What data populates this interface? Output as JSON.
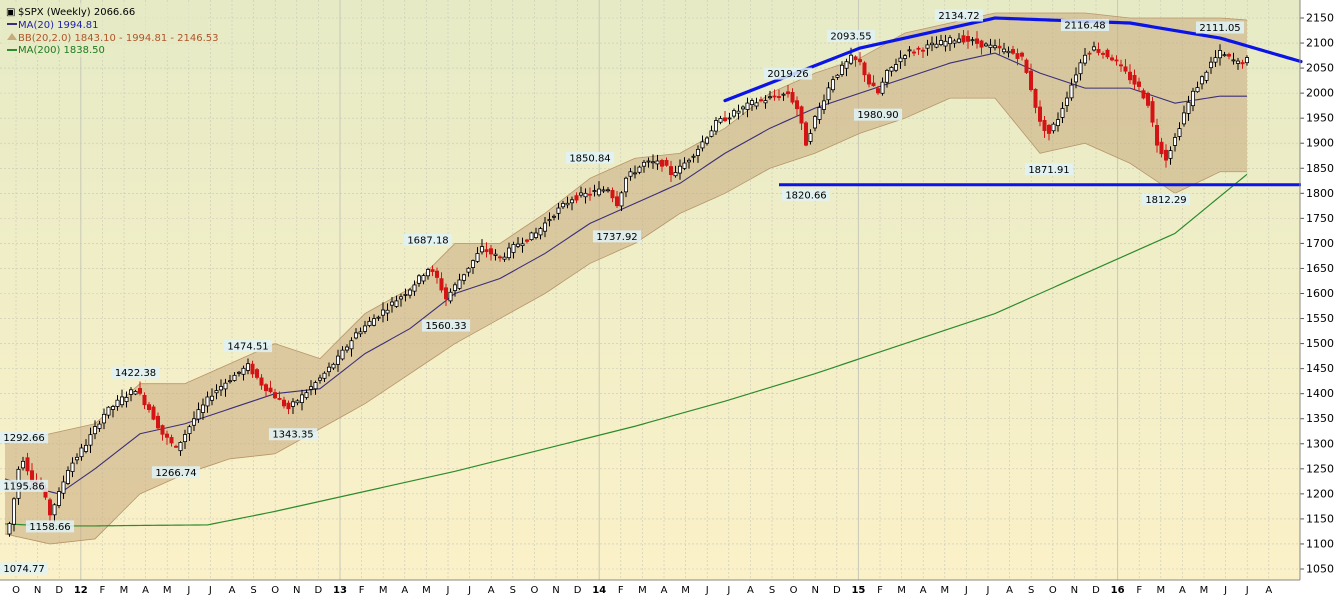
{
  "legend": {
    "title": "$SPX (Weekly) 2066.66",
    "ma20": "MA(20) 1994.81",
    "bb": "BB(20,2.0) 1843.10 - 1994.81 - 2146.53",
    "ma200": "MA(200) 1838.50"
  },
  "colors": {
    "up": "#000000",
    "down": "#d41414",
    "ma20": "#3b2f7a",
    "ma200": "#2e8b2e",
    "band_fill": "#c9aa7e",
    "band_edge": "#b8956a",
    "trend": "#0a14e6",
    "label_bg": "#dff2f7",
    "grid": "#c8c8b8"
  },
  "chart_data": {
    "type": "candlestick",
    "title": "$SPX (Weekly) 2066.66",
    "ylim": [
      1050,
      2150
    ],
    "y_ticks": [
      1050,
      1100,
      1150,
      1200,
      1250,
      1300,
      1350,
      1400,
      1450,
      1500,
      1550,
      1600,
      1650,
      1700,
      1750,
      1800,
      1850,
      1900,
      1950,
      2000,
      2050,
      2100,
      2150
    ],
    "x_ticks": [
      "O",
      "N",
      "D",
      "12",
      "F",
      "M",
      "A",
      "M",
      "J",
      "J",
      "A",
      "S",
      "O",
      "N",
      "D",
      "13",
      "F",
      "M",
      "A",
      "M",
      "J",
      "J",
      "A",
      "S",
      "O",
      "N",
      "D",
      "14",
      "F",
      "M",
      "A",
      "M",
      "J",
      "J",
      "A",
      "S",
      "O",
      "N",
      "D",
      "15",
      "F",
      "M",
      "A",
      "M",
      "J",
      "J",
      "A",
      "S",
      "O",
      "N",
      "D",
      "16",
      "F",
      "M",
      "A",
      "M",
      "J",
      "J",
      "A"
    ],
    "price_anchors": [
      [
        0,
        1120
      ],
      [
        1,
        1140
      ],
      [
        2,
        1190
      ],
      [
        3,
        1250
      ],
      [
        4,
        1270
      ],
      [
        6,
        1230
      ],
      [
        8,
        1215
      ],
      [
        10,
        1160
      ],
      [
        12,
        1200
      ],
      [
        14,
        1250
      ],
      [
        18,
        1300
      ],
      [
        22,
        1360
      ],
      [
        26,
        1390
      ],
      [
        29,
        1410
      ],
      [
        32,
        1370
      ],
      [
        35,
        1320
      ],
      [
        38,
        1290
      ],
      [
        42,
        1350
      ],
      [
        46,
        1400
      ],
      [
        50,
        1430
      ],
      [
        54,
        1455
      ],
      [
        57,
        1420
      ],
      [
        60,
        1395
      ],
      [
        63,
        1370
      ],
      [
        66,
        1395
      ],
      [
        70,
        1430
      ],
      [
        74,
        1470
      ],
      [
        78,
        1520
      ],
      [
        82,
        1550
      ],
      [
        86,
        1580
      ],
      [
        90,
        1610
      ],
      [
        94,
        1650
      ],
      [
        96,
        1630
      ],
      [
        98,
        1590
      ],
      [
        102,
        1640
      ],
      [
        106,
        1690
      ],
      [
        110,
        1670
      ],
      [
        114,
        1700
      ],
      [
        118,
        1720
      ],
      [
        122,
        1760
      ],
      [
        126,
        1790
      ],
      [
        130,
        1800
      ],
      [
        134,
        1810
      ],
      [
        136,
        1780
      ],
      [
        138,
        1830
      ],
      [
        142,
        1860
      ],
      [
        146,
        1860
      ],
      [
        148,
        1840
      ],
      [
        150,
        1850
      ],
      [
        154,
        1890
      ],
      [
        158,
        1940
      ],
      [
        162,
        1960
      ],
      [
        166,
        1980
      ],
      [
        170,
        1990
      ],
      [
        174,
        2000
      ],
      [
        176,
        1970
      ],
      [
        178,
        1900
      ],
      [
        180,
        1950
      ],
      [
        184,
        2030
      ],
      [
        188,
        2070
      ],
      [
        190,
        2060
      ],
      [
        192,
        2020
      ],
      [
        194,
        2000
      ],
      [
        196,
        2040
      ],
      [
        200,
        2080
      ],
      [
        204,
        2090
      ],
      [
        208,
        2100
      ],
      [
        212,
        2110
      ],
      [
        216,
        2100
      ],
      [
        220,
        2090
      ],
      [
        224,
        2080
      ],
      [
        226,
        2070
      ],
      [
        228,
        2010
      ],
      [
        230,
        1940
      ],
      [
        232,
        1920
      ],
      [
        234,
        1950
      ],
      [
        238,
        2040
      ],
      [
        240,
        2080
      ],
      [
        242,
        2090
      ],
      [
        246,
        2070
      ],
      [
        248,
        2050
      ],
      [
        250,
        2030
      ],
      [
        252,
        2010
      ],
      [
        254,
        1980
      ],
      [
        256,
        1900
      ],
      [
        258,
        1870
      ],
      [
        260,
        1910
      ],
      [
        262,
        1960
      ],
      [
        264,
        2000
      ],
      [
        266,
        2030
      ],
      [
        268,
        2060
      ],
      [
        270,
        2080
      ],
      [
        272,
        2070
      ],
      [
        274,
        2060
      ],
      [
        276,
        2066
      ]
    ],
    "ma20": [
      [
        0,
        1230
      ],
      [
        5,
        1215
      ],
      [
        12,
        1200
      ],
      [
        20,
        1250
      ],
      [
        30,
        1320
      ],
      [
        40,
        1340
      ],
      [
        50,
        1370
      ],
      [
        60,
        1400
      ],
      [
        70,
        1410
      ],
      [
        80,
        1480
      ],
      [
        90,
        1530
      ],
      [
        100,
        1600
      ],
      [
        110,
        1630
      ],
      [
        120,
        1680
      ],
      [
        130,
        1740
      ],
      [
        140,
        1780
      ],
      [
        150,
        1820
      ],
      [
        160,
        1880
      ],
      [
        170,
        1930
      ],
      [
        180,
        1970
      ],
      [
        190,
        2000
      ],
      [
        200,
        2030
      ],
      [
        210,
        2060
      ],
      [
        220,
        2080
      ],
      [
        230,
        2040
      ],
      [
        240,
        2010
      ],
      [
        250,
        2010
      ],
      [
        260,
        1980
      ],
      [
        270,
        1994
      ],
      [
        276,
        1994
      ]
    ],
    "ma200": [
      [
        0,
        1140
      ],
      [
        10,
        1136
      ],
      [
        20,
        1136
      ],
      [
        30,
        1137
      ],
      [
        45,
        1138
      ],
      [
        60,
        1165
      ],
      [
        80,
        1205
      ],
      [
        100,
        1245
      ],
      [
        120,
        1290
      ],
      [
        140,
        1335
      ],
      [
        160,
        1385
      ],
      [
        180,
        1440
      ],
      [
        200,
        1500
      ],
      [
        220,
        1560
      ],
      [
        240,
        1640
      ],
      [
        260,
        1720
      ],
      [
        276,
        1838
      ]
    ],
    "bb_upper": [
      [
        0,
        1300
      ],
      [
        10,
        1320
      ],
      [
        20,
        1340
      ],
      [
        30,
        1420
      ],
      [
        40,
        1420
      ],
      [
        50,
        1460
      ],
      [
        60,
        1500
      ],
      [
        70,
        1470
      ],
      [
        80,
        1560
      ],
      [
        90,
        1610
      ],
      [
        100,
        1700
      ],
      [
        110,
        1700
      ],
      [
        120,
        1760
      ],
      [
        130,
        1830
      ],
      [
        140,
        1870
      ],
      [
        150,
        1880
      ],
      [
        160,
        1930
      ],
      [
        170,
        2000
      ],
      [
        180,
        2040
      ],
      [
        190,
        2070
      ],
      [
        200,
        2120
      ],
      [
        210,
        2140
      ],
      [
        220,
        2160
      ],
      [
        230,
        2160
      ],
      [
        240,
        2160
      ],
      [
        250,
        2150
      ],
      [
        260,
        2150
      ],
      [
        270,
        2150
      ],
      [
        276,
        2146
      ]
    ],
    "bb_lower": [
      [
        0,
        1120
      ],
      [
        10,
        1100
      ],
      [
        20,
        1110
      ],
      [
        30,
        1200
      ],
      [
        40,
        1240
      ],
      [
        50,
        1270
      ],
      [
        60,
        1280
      ],
      [
        70,
        1330
      ],
      [
        80,
        1380
      ],
      [
        90,
        1440
      ],
      [
        100,
        1500
      ],
      [
        110,
        1550
      ],
      [
        120,
        1600
      ],
      [
        130,
        1660
      ],
      [
        140,
        1700
      ],
      [
        150,
        1760
      ],
      [
        160,
        1800
      ],
      [
        170,
        1850
      ],
      [
        180,
        1880
      ],
      [
        190,
        1920
      ],
      [
        200,
        1950
      ],
      [
        210,
        1990
      ],
      [
        220,
        1990
      ],
      [
        230,
        1880
      ],
      [
        240,
        1900
      ],
      [
        250,
        1860
      ],
      [
        260,
        1800
      ],
      [
        270,
        1843
      ],
      [
        276,
        1843
      ]
    ],
    "annotations": [
      {
        "text": "1074.77",
        "x": 0,
        "y": 1075,
        "pos": "below"
      },
      {
        "text": "1195.86",
        "x": 0,
        "y": 1196,
        "pos": "above"
      },
      {
        "text": "1292.66",
        "x": 3,
        "y": 1293,
        "pos": "above"
      },
      {
        "text": "1158.66",
        "x": 10,
        "y": 1159,
        "pos": "below"
      },
      {
        "text": "1422.38",
        "x": 29,
        "y": 1422,
        "pos": "above"
      },
      {
        "text": "1266.74",
        "x": 38,
        "y": 1267,
        "pos": "below"
      },
      {
        "text": "1474.51",
        "x": 54,
        "y": 1475,
        "pos": "above"
      },
      {
        "text": "1343.35",
        "x": 64,
        "y": 1343,
        "pos": "below"
      },
      {
        "text": "1687.18",
        "x": 94,
        "y": 1687,
        "pos": "above"
      },
      {
        "text": "1560.33",
        "x": 98,
        "y": 1560,
        "pos": "below"
      },
      {
        "text": "1850.84",
        "x": 130,
        "y": 1851,
        "pos": "above"
      },
      {
        "text": "1737.92",
        "x": 136,
        "y": 1738,
        "pos": "below"
      },
      {
        "text": "2019.26",
        "x": 174,
        "y": 2019,
        "pos": "above"
      },
      {
        "text": "1820.66",
        "x": 178,
        "y": 1821,
        "pos": "below"
      },
      {
        "text": "2093.55",
        "x": 188,
        "y": 2094,
        "pos": "above"
      },
      {
        "text": "1980.90",
        "x": 194,
        "y": 1981,
        "pos": "below"
      },
      {
        "text": "2134.72",
        "x": 212,
        "y": 2135,
        "pos": "above"
      },
      {
        "text": "2116.48",
        "x": 240,
        "y": 2116,
        "pos": "above"
      },
      {
        "text": "1871.91",
        "x": 232,
        "y": 1872,
        "pos": "below"
      },
      {
        "text": "1812.29",
        "x": 258,
        "y": 1812,
        "pos": "below"
      },
      {
        "text": "2111.05",
        "x": 270,
        "y": 2111,
        "pos": "above"
      }
    ],
    "trendlines": {
      "arc": [
        [
          160,
          1985
        ],
        [
          190,
          2090
        ],
        [
          220,
          2150
        ],
        [
          250,
          2140
        ],
        [
          270,
          2110
        ],
        [
          288,
          2063
        ]
      ],
      "support": [
        [
          172,
          1817
        ],
        [
          288,
          1817
        ]
      ]
    }
  }
}
